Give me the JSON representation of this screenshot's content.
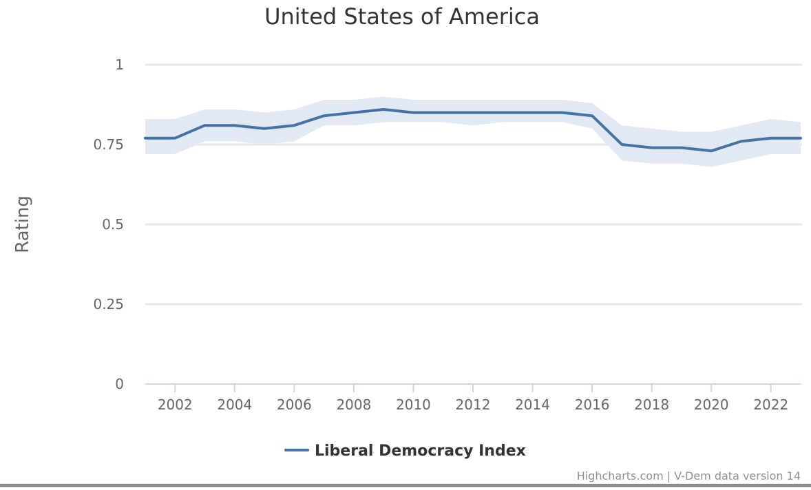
{
  "chart_data": {
    "type": "line",
    "title": "United States of America",
    "ylabel": "Rating",
    "xlabel": "",
    "ylim": [
      0,
      1
    ],
    "xlim": [
      2001,
      2023
    ],
    "y_ticks": [
      {
        "value": 0,
        "label": "0"
      },
      {
        "value": 0.25,
        "label": "0.25"
      },
      {
        "value": 0.5,
        "label": "0.5"
      },
      {
        "value": 0.75,
        "label": "0.75"
      },
      {
        "value": 1,
        "label": "1"
      }
    ],
    "x_ticks": [
      {
        "value": 2002,
        "label": "2002"
      },
      {
        "value": 2004,
        "label": "2004"
      },
      {
        "value": 2006,
        "label": "2006"
      },
      {
        "value": 2008,
        "label": "2008"
      },
      {
        "value": 2010,
        "label": "2010"
      },
      {
        "value": 2012,
        "label": "2012"
      },
      {
        "value": 2014,
        "label": "2014"
      },
      {
        "value": 2016,
        "label": "2016"
      },
      {
        "value": 2018,
        "label": "2018"
      },
      {
        "value": 2020,
        "label": "2020"
      },
      {
        "value": 2022,
        "label": "2022"
      }
    ],
    "grid": true,
    "legend_position": "bottom-center",
    "x": [
      2001,
      2002,
      2003,
      2004,
      2005,
      2006,
      2007,
      2008,
      2009,
      2010,
      2011,
      2012,
      2013,
      2014,
      2015,
      2016,
      2017,
      2018,
      2019,
      2020,
      2021,
      2022,
      2023
    ],
    "series": [
      {
        "name": "Liberal Democracy Index",
        "color": "#4572a7",
        "values": [
          0.77,
          0.77,
          0.81,
          0.81,
          0.8,
          0.81,
          0.84,
          0.85,
          0.86,
          0.85,
          0.85,
          0.85,
          0.85,
          0.85,
          0.85,
          0.84,
          0.75,
          0.74,
          0.74,
          0.73,
          0.76,
          0.77,
          0.77
        ],
        "upper": [
          0.83,
          0.83,
          0.86,
          0.86,
          0.85,
          0.86,
          0.89,
          0.89,
          0.9,
          0.89,
          0.89,
          0.89,
          0.89,
          0.89,
          0.89,
          0.88,
          0.81,
          0.8,
          0.79,
          0.79,
          0.81,
          0.83,
          0.82
        ],
        "lower": [
          0.72,
          0.72,
          0.76,
          0.76,
          0.75,
          0.76,
          0.81,
          0.81,
          0.82,
          0.82,
          0.82,
          0.81,
          0.82,
          0.82,
          0.82,
          0.8,
          0.7,
          0.69,
          0.69,
          0.68,
          0.7,
          0.72,
          0.72
        ],
        "band_color": "#e3e9f2"
      }
    ],
    "credits": "Highcharts.com | V-Dem data version 14"
  }
}
